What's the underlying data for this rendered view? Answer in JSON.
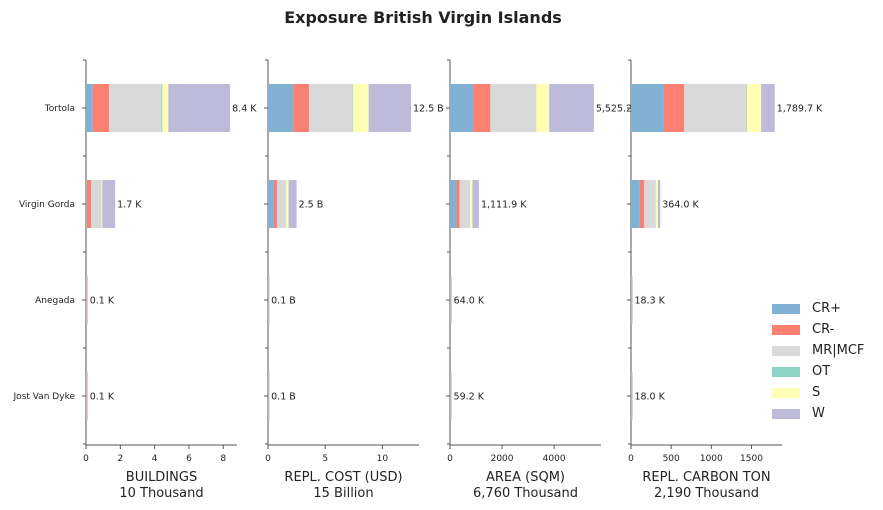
{
  "title": "Exposure British Virgin Islands",
  "legend": [
    {
      "label": "CR+",
      "color": "#80b1d3"
    },
    {
      "label": "CR-",
      "color": "#fb8072"
    },
    {
      "label": "MR|MCF",
      "color": "#d9d9d9"
    },
    {
      "label": "OT",
      "color": "#8dd3c7"
    },
    {
      "label": "S",
      "color": "#ffffb3"
    },
    {
      "label": "W",
      "color": "#bebada"
    }
  ],
  "chart_data": [
    {
      "type": "bar",
      "orientation": "horizontal",
      "stacked": true,
      "categories": [
        "Tortola",
        "Virgin Gorda",
        "Anegada",
        "Jost Van Dyke"
      ],
      "xlabel": "BUILDINGS",
      "xlabel_sub": "10 Thousand",
      "xlim": [
        0,
        8.8
      ],
      "ticks": [
        0,
        2,
        4,
        6,
        8
      ],
      "tick_labels": [
        "0",
        "2",
        "4",
        "6",
        "8"
      ],
      "series": [
        {
          "name": "CR+",
          "values": [
            0.4,
            0.05,
            0.01,
            0.01
          ]
        },
        {
          "name": "CR-",
          "values": [
            0.95,
            0.25,
            0.02,
            0.02
          ]
        },
        {
          "name": "MR|MCF",
          "values": [
            3.05,
            0.6,
            0.03,
            0.03
          ]
        },
        {
          "name": "OT",
          "values": [
            0.05,
            0.0,
            0.0,
            0.0
          ]
        },
        {
          "name": "S",
          "values": [
            0.35,
            0.05,
            0.0,
            0.0
          ]
        },
        {
          "name": "W",
          "values": [
            3.6,
            0.75,
            0.04,
            0.04
          ]
        }
      ],
      "labels": [
        "8.4 K",
        "1.7 K",
        "0.1 K",
        "0.1 K"
      ]
    },
    {
      "type": "bar",
      "orientation": "horizontal",
      "stacked": true,
      "categories": [
        "Tortola",
        "Virgin Gorda",
        "Anegada",
        "Jost Van Dyke"
      ],
      "xlabel": "REPL. COST (USD)",
      "xlabel_sub": "15 Billion",
      "xlim": [
        0,
        13.2
      ],
      "ticks": [
        0,
        5,
        10
      ],
      "tick_labels": [
        "0",
        "5",
        "10"
      ],
      "series": [
        {
          "name": "CR+",
          "values": [
            2.2,
            0.5,
            0.03,
            0.03
          ]
        },
        {
          "name": "CR-",
          "values": [
            1.4,
            0.3,
            0.02,
            0.02
          ]
        },
        {
          "name": "MR|MCF",
          "values": [
            3.8,
            0.8,
            0.02,
            0.02
          ]
        },
        {
          "name": "OT",
          "values": [
            0.05,
            0.0,
            0.0,
            0.0
          ]
        },
        {
          "name": "S",
          "values": [
            1.35,
            0.2,
            0.0,
            0.0
          ]
        },
        {
          "name": "W",
          "values": [
            3.7,
            0.7,
            0.03,
            0.03
          ]
        }
      ],
      "labels": [
        "12.5 B",
        "2.5 B",
        "0.1 B",
        "0.1 B"
      ]
    },
    {
      "type": "bar",
      "orientation": "horizontal",
      "stacked": true,
      "categories": [
        "Tortola",
        "Virgin Gorda",
        "Anegada",
        "Jost Van Dyke"
      ],
      "xlabel": "AREA (SQM)",
      "xlabel_sub": "6,760 Thousand",
      "xlim": [
        0,
        5800
      ],
      "ticks": [
        0,
        2000,
        4000
      ],
      "tick_labels": [
        "0",
        "2000",
        "4000"
      ],
      "series": [
        {
          "name": "CR+",
          "values": [
            900,
            250,
            16,
            15
          ]
        },
        {
          "name": "CR-",
          "values": [
            650,
            120,
            10,
            9
          ]
        },
        {
          "name": "MR|MCF",
          "values": [
            1750,
            400,
            18,
            17
          ]
        },
        {
          "name": "OT",
          "values": [
            10,
            0,
            0,
            0
          ]
        },
        {
          "name": "S",
          "values": [
            500,
            90,
            5,
            5
          ]
        },
        {
          "name": "W",
          "values": [
            1715,
            252,
            15,
            13
          ]
        }
      ],
      "labels": [
        "5,525.2",
        "1,111.9 K",
        "64.0 K",
        "59.2 K"
      ]
    },
    {
      "type": "bar",
      "orientation": "horizontal",
      "stacked": true,
      "categories": [
        "Tortola",
        "Virgin Gorda",
        "Anegada",
        "Jost Van Dyke"
      ],
      "xlabel": "REPL. CARBON TON",
      "xlabel_sub": "2,190 Thousand",
      "xlim": [
        0,
        1880
      ],
      "ticks": [
        0,
        500,
        1000,
        1500
      ],
      "tick_labels": [
        "0",
        "500",
        "1000",
        "1500"
      ],
      "series": [
        {
          "name": "CR+",
          "values": [
            410,
            110,
            5,
            5
          ]
        },
        {
          "name": "CR-",
          "values": [
            250,
            55,
            3,
            3
          ]
        },
        {
          "name": "MR|MCF",
          "values": [
            780,
            145,
            6,
            6
          ]
        },
        {
          "name": "OT",
          "values": [
            5,
            0,
            0,
            0
          ]
        },
        {
          "name": "S",
          "values": [
            175,
            24,
            1.3,
            1
          ]
        },
        {
          "name": "W",
          "values": [
            170,
            30,
            3,
            3
          ]
        }
      ],
      "labels": [
        "1,789.7 K",
        "364.0 K",
        "18.3 K",
        "18.0 K"
      ]
    }
  ]
}
